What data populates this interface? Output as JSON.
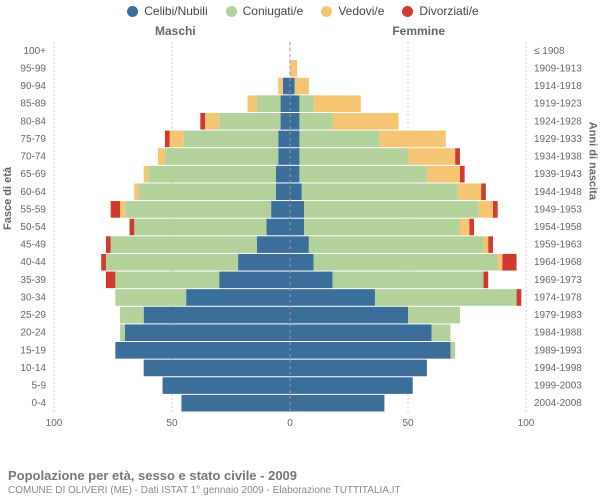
{
  "legend": {
    "items": [
      {
        "label": "Celibi/Nubili",
        "color": "#3b6e99"
      },
      {
        "label": "Coniugati/e",
        "color": "#b3d19a"
      },
      {
        "label": "Vedovi/e",
        "color": "#f4c673"
      },
      {
        "label": "Divorziati/e",
        "color": "#d23a2f"
      }
    ]
  },
  "side_titles": {
    "left": "Maschi",
    "right": "Femmine"
  },
  "axis_titles": {
    "left": "Fasce di età",
    "right": "Anni di nascita"
  },
  "footer": {
    "title": "Popolazione per età, sesso e stato civile - 2009",
    "subtitle": "COMUNE DI OLIVERI (ME) - Dati ISTAT 1° gennaio 2009 - Elaborazione TUTTITALIA.IT"
  },
  "chart": {
    "type": "population-pyramid",
    "xmax": 100,
    "xticks": [
      100,
      50,
      0,
      50,
      100
    ],
    "background": "#ffffff",
    "grid_color": "#cccccc",
    "centerline_color": "#999999",
    "bar_gap": 1,
    "categories_colors": {
      "single": "#3b6e99",
      "married": "#b3d19a",
      "widowed": "#f4c673",
      "divorced": "#d23a2f"
    },
    "rows": [
      {
        "age": "100+",
        "birth": "≤ 1908",
        "m": {
          "single": 0,
          "married": 0,
          "widowed": 0,
          "divorced": 0
        },
        "f": {
          "single": 0,
          "married": 0,
          "widowed": 0,
          "divorced": 0
        }
      },
      {
        "age": "95-99",
        "birth": "1909-1913",
        "m": {
          "single": 0,
          "married": 0,
          "widowed": 0,
          "divorced": 0
        },
        "f": {
          "single": 0,
          "married": 0,
          "widowed": 3,
          "divorced": 0
        }
      },
      {
        "age": "90-94",
        "birth": "1914-1918",
        "m": {
          "single": 3,
          "married": 0,
          "widowed": 2,
          "divorced": 0
        },
        "f": {
          "single": 2,
          "married": 0,
          "widowed": 6,
          "divorced": 0
        }
      },
      {
        "age": "85-89",
        "birth": "1919-1923",
        "m": {
          "single": 4,
          "married": 10,
          "widowed": 4,
          "divorced": 0
        },
        "f": {
          "single": 4,
          "married": 6,
          "widowed": 20,
          "divorced": 0
        }
      },
      {
        "age": "80-84",
        "birth": "1924-1928",
        "m": {
          "single": 4,
          "married": 26,
          "widowed": 6,
          "divorced": 2
        },
        "f": {
          "single": 4,
          "married": 14,
          "widowed": 28,
          "divorced": 0
        }
      },
      {
        "age": "75-79",
        "birth": "1929-1933",
        "m": {
          "single": 5,
          "married": 40,
          "widowed": 6,
          "divorced": 2
        },
        "f": {
          "single": 4,
          "married": 34,
          "widowed": 28,
          "divorced": 0
        }
      },
      {
        "age": "70-74",
        "birth": "1934-1938",
        "m": {
          "single": 5,
          "married": 48,
          "widowed": 3,
          "divorced": 0
        },
        "f": {
          "single": 4,
          "married": 46,
          "widowed": 20,
          "divorced": 2
        }
      },
      {
        "age": "65-69",
        "birth": "1939-1943",
        "m": {
          "single": 6,
          "married": 54,
          "widowed": 2,
          "divorced": 0
        },
        "f": {
          "single": 4,
          "married": 54,
          "widowed": 14,
          "divorced": 2
        }
      },
      {
        "age": "60-64",
        "birth": "1944-1948",
        "m": {
          "single": 6,
          "married": 58,
          "widowed": 2,
          "divorced": 0
        },
        "f": {
          "single": 5,
          "married": 66,
          "widowed": 10,
          "divorced": 2
        }
      },
      {
        "age": "55-59",
        "birth": "1949-1953",
        "m": {
          "single": 8,
          "married": 62,
          "widowed": 2,
          "divorced": 4
        },
        "f": {
          "single": 6,
          "married": 74,
          "widowed": 6,
          "divorced": 2
        }
      },
      {
        "age": "50-54",
        "birth": "1954-1958",
        "m": {
          "single": 10,
          "married": 56,
          "widowed": 0,
          "divorced": 2
        },
        "f": {
          "single": 6,
          "married": 66,
          "widowed": 4,
          "divorced": 2
        }
      },
      {
        "age": "45-49",
        "birth": "1959-1963",
        "m": {
          "single": 14,
          "married": 62,
          "widowed": 0,
          "divorced": 2
        },
        "f": {
          "single": 8,
          "married": 74,
          "widowed": 2,
          "divorced": 2
        }
      },
      {
        "age": "40-44",
        "birth": "1964-1968",
        "m": {
          "single": 22,
          "married": 56,
          "widowed": 0,
          "divorced": 2
        },
        "f": {
          "single": 10,
          "married": 78,
          "widowed": 2,
          "divorced": 6
        }
      },
      {
        "age": "35-39",
        "birth": "1969-1973",
        "m": {
          "single": 30,
          "married": 44,
          "widowed": 0,
          "divorced": 4
        },
        "f": {
          "single": 18,
          "married": 64,
          "widowed": 0,
          "divorced": 2
        }
      },
      {
        "age": "30-34",
        "birth": "1974-1978",
        "m": {
          "single": 44,
          "married": 30,
          "widowed": 0,
          "divorced": 0
        },
        "f": {
          "single": 36,
          "married": 60,
          "widowed": 0,
          "divorced": 2
        }
      },
      {
        "age": "25-29",
        "birth": "1979-1983",
        "m": {
          "single": 62,
          "married": 10,
          "widowed": 0,
          "divorced": 0
        },
        "f": {
          "single": 50,
          "married": 22,
          "widowed": 0,
          "divorced": 0
        }
      },
      {
        "age": "20-24",
        "birth": "1984-1988",
        "m": {
          "single": 70,
          "married": 2,
          "widowed": 0,
          "divorced": 0
        },
        "f": {
          "single": 60,
          "married": 8,
          "widowed": 0,
          "divorced": 0
        }
      },
      {
        "age": "15-19",
        "birth": "1989-1993",
        "m": {
          "single": 74,
          "married": 0,
          "widowed": 0,
          "divorced": 0
        },
        "f": {
          "single": 68,
          "married": 2,
          "widowed": 0,
          "divorced": 0
        }
      },
      {
        "age": "10-14",
        "birth": "1994-1998",
        "m": {
          "single": 62,
          "married": 0,
          "widowed": 0,
          "divorced": 0
        },
        "f": {
          "single": 58,
          "married": 0,
          "widowed": 0,
          "divorced": 0
        }
      },
      {
        "age": "5-9",
        "birth": "1999-2003",
        "m": {
          "single": 54,
          "married": 0,
          "widowed": 0,
          "divorced": 0
        },
        "f": {
          "single": 52,
          "married": 0,
          "widowed": 0,
          "divorced": 0
        }
      },
      {
        "age": "0-4",
        "birth": "2004-2008",
        "m": {
          "single": 46,
          "married": 0,
          "widowed": 0,
          "divorced": 0
        },
        "f": {
          "single": 40,
          "married": 0,
          "widowed": 0,
          "divorced": 0
        }
      }
    ]
  }
}
